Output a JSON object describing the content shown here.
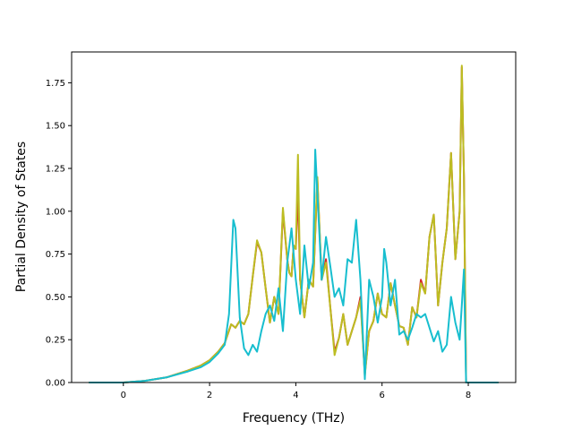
{
  "chart_data": {
    "type": "line",
    "title": "",
    "xlabel": "Frequency (THz)",
    "ylabel": "Partial Density of States",
    "xlim": [
      -1.2,
      9.1
    ],
    "ylim": [
      0,
      1.93
    ],
    "xticks": [
      0,
      2,
      4,
      6,
      8
    ],
    "yticks": [
      0.0,
      0.25,
      0.5,
      0.75,
      1.0,
      1.25,
      1.5,
      1.75
    ],
    "xtick_labels": [
      "0",
      "2",
      "4",
      "6",
      "8"
    ],
    "ytick_labels": [
      "0.00",
      "0.25",
      "0.50",
      "0.75",
      "1.00",
      "1.25",
      "1.50",
      "1.75"
    ],
    "grid": false,
    "legend": "none",
    "series": [
      {
        "color": "#d62728",
        "points": [
          [
            -0.8,
            0
          ],
          [
            0,
            0
          ],
          [
            0.5,
            0.01
          ],
          [
            1.0,
            0.03
          ],
          [
            1.5,
            0.07
          ],
          [
            1.8,
            0.1
          ],
          [
            2.0,
            0.13
          ],
          [
            2.2,
            0.18
          ],
          [
            2.35,
            0.23
          ],
          [
            2.5,
            0.34
          ],
          [
            2.6,
            0.32
          ],
          [
            2.7,
            0.36
          ],
          [
            2.8,
            0.34
          ],
          [
            2.9,
            0.4
          ],
          [
            3.0,
            0.62
          ],
          [
            3.1,
            0.82
          ],
          [
            3.2,
            0.76
          ],
          [
            3.3,
            0.55
          ],
          [
            3.4,
            0.35
          ],
          [
            3.5,
            0.5
          ],
          [
            3.6,
            0.4
          ],
          [
            3.7,
            1.0
          ],
          [
            3.8,
            0.72
          ],
          [
            3.85,
            0.64
          ],
          [
            3.9,
            0.62
          ],
          [
            3.95,
            0.8
          ],
          [
            4.0,
            0.78
          ],
          [
            4.05,
            1.12
          ],
          [
            4.1,
            0.6
          ],
          [
            4.2,
            0.38
          ],
          [
            4.3,
            0.6
          ],
          [
            4.4,
            0.56
          ],
          [
            4.5,
            1.18
          ],
          [
            4.6,
            0.6
          ],
          [
            4.7,
            0.72
          ],
          [
            4.8,
            0.44
          ],
          [
            4.9,
            0.18
          ],
          [
            5.0,
            0.26
          ],
          [
            5.1,
            0.4
          ],
          [
            5.2,
            0.22
          ],
          [
            5.3,
            0.3
          ],
          [
            5.4,
            0.38
          ],
          [
            5.5,
            0.5
          ],
          [
            5.6,
            0.05
          ],
          [
            5.7,
            0.3
          ],
          [
            5.8,
            0.36
          ],
          [
            5.9,
            0.52
          ],
          [
            6.0,
            0.4
          ],
          [
            6.1,
            0.38
          ],
          [
            6.2,
            0.58
          ],
          [
            6.3,
            0.45
          ],
          [
            6.4,
            0.33
          ],
          [
            6.5,
            0.32
          ],
          [
            6.6,
            0.22
          ],
          [
            6.7,
            0.44
          ],
          [
            6.8,
            0.38
          ],
          [
            6.9,
            0.6
          ],
          [
            7.0,
            0.52
          ],
          [
            7.1,
            0.85
          ],
          [
            7.2,
            0.98
          ],
          [
            7.3,
            0.45
          ],
          [
            7.4,
            0.7
          ],
          [
            7.5,
            0.9
          ],
          [
            7.6,
            1.34
          ],
          [
            7.7,
            0.72
          ],
          [
            7.8,
            1.0
          ],
          [
            7.85,
            1.84
          ],
          [
            7.9,
            1.2
          ],
          [
            7.95,
            0.0
          ],
          [
            8.7,
            0
          ]
        ]
      },
      {
        "color": "#bcbd22",
        "points": [
          [
            -0.8,
            0
          ],
          [
            0,
            0
          ],
          [
            0.5,
            0.01
          ],
          [
            1.0,
            0.03
          ],
          [
            1.5,
            0.07
          ],
          [
            1.8,
            0.1
          ],
          [
            2.0,
            0.13
          ],
          [
            2.2,
            0.18
          ],
          [
            2.35,
            0.23
          ],
          [
            2.5,
            0.34
          ],
          [
            2.6,
            0.32
          ],
          [
            2.7,
            0.36
          ],
          [
            2.8,
            0.34
          ],
          [
            2.9,
            0.4
          ],
          [
            3.0,
            0.62
          ],
          [
            3.1,
            0.83
          ],
          [
            3.2,
            0.76
          ],
          [
            3.3,
            0.55
          ],
          [
            3.4,
            0.35
          ],
          [
            3.5,
            0.5
          ],
          [
            3.6,
            0.4
          ],
          [
            3.7,
            1.02
          ],
          [
            3.8,
            0.72
          ],
          [
            3.85,
            0.64
          ],
          [
            3.9,
            0.62
          ],
          [
            3.95,
            0.8
          ],
          [
            4.0,
            0.78
          ],
          [
            4.05,
            1.33
          ],
          [
            4.1,
            0.6
          ],
          [
            4.2,
            0.38
          ],
          [
            4.3,
            0.6
          ],
          [
            4.4,
            0.56
          ],
          [
            4.5,
            1.2
          ],
          [
            4.6,
            0.6
          ],
          [
            4.7,
            0.7
          ],
          [
            4.8,
            0.44
          ],
          [
            4.9,
            0.16
          ],
          [
            5.0,
            0.26
          ],
          [
            5.1,
            0.4
          ],
          [
            5.2,
            0.22
          ],
          [
            5.3,
            0.3
          ],
          [
            5.4,
            0.38
          ],
          [
            5.5,
            0.48
          ],
          [
            5.6,
            0.04
          ],
          [
            5.7,
            0.3
          ],
          [
            5.8,
            0.36
          ],
          [
            5.9,
            0.52
          ],
          [
            6.0,
            0.4
          ],
          [
            6.1,
            0.38
          ],
          [
            6.2,
            0.58
          ],
          [
            6.3,
            0.45
          ],
          [
            6.4,
            0.33
          ],
          [
            6.5,
            0.32
          ],
          [
            6.6,
            0.22
          ],
          [
            6.7,
            0.44
          ],
          [
            6.8,
            0.38
          ],
          [
            6.9,
            0.58
          ],
          [
            7.0,
            0.52
          ],
          [
            7.1,
            0.85
          ],
          [
            7.2,
            0.98
          ],
          [
            7.3,
            0.45
          ],
          [
            7.4,
            0.7
          ],
          [
            7.5,
            0.9
          ],
          [
            7.6,
            1.34
          ],
          [
            7.7,
            0.72
          ],
          [
            7.8,
            1.0
          ],
          [
            7.85,
            1.85
          ],
          [
            7.9,
            1.2
          ],
          [
            7.95,
            0.0
          ],
          [
            8.7,
            0
          ]
        ]
      },
      {
        "color": "#17becf",
        "points": [
          [
            -0.8,
            0
          ],
          [
            0,
            0
          ],
          [
            0.5,
            0.01
          ],
          [
            1.0,
            0.03
          ],
          [
            1.5,
            0.065
          ],
          [
            1.8,
            0.09
          ],
          [
            2.0,
            0.12
          ],
          [
            2.2,
            0.17
          ],
          [
            2.35,
            0.22
          ],
          [
            2.45,
            0.4
          ],
          [
            2.55,
            0.95
          ],
          [
            2.6,
            0.9
          ],
          [
            2.7,
            0.38
          ],
          [
            2.8,
            0.2
          ],
          [
            2.9,
            0.16
          ],
          [
            3.0,
            0.22
          ],
          [
            3.1,
            0.18
          ],
          [
            3.2,
            0.3
          ],
          [
            3.3,
            0.4
          ],
          [
            3.4,
            0.45
          ],
          [
            3.5,
            0.36
          ],
          [
            3.6,
            0.55
          ],
          [
            3.7,
            0.3
          ],
          [
            3.8,
            0.7
          ],
          [
            3.9,
            0.9
          ],
          [
            4.0,
            0.6
          ],
          [
            4.1,
            0.4
          ],
          [
            4.2,
            0.8
          ],
          [
            4.3,
            0.55
          ],
          [
            4.4,
            0.7
          ],
          [
            4.45,
            1.36
          ],
          [
            4.5,
            1.1
          ],
          [
            4.6,
            0.6
          ],
          [
            4.7,
            0.85
          ],
          [
            4.8,
            0.68
          ],
          [
            4.9,
            0.5
          ],
          [
            5.0,
            0.55
          ],
          [
            5.1,
            0.45
          ],
          [
            5.2,
            0.72
          ],
          [
            5.3,
            0.7
          ],
          [
            5.4,
            0.95
          ],
          [
            5.5,
            0.6
          ],
          [
            5.6,
            0.02
          ],
          [
            5.7,
            0.6
          ],
          [
            5.8,
            0.5
          ],
          [
            5.9,
            0.35
          ],
          [
            6.0,
            0.5
          ],
          [
            6.05,
            0.78
          ],
          [
            6.1,
            0.7
          ],
          [
            6.2,
            0.45
          ],
          [
            6.3,
            0.6
          ],
          [
            6.4,
            0.28
          ],
          [
            6.5,
            0.3
          ],
          [
            6.6,
            0.25
          ],
          [
            6.7,
            0.32
          ],
          [
            6.8,
            0.4
          ],
          [
            6.9,
            0.38
          ],
          [
            7.0,
            0.4
          ],
          [
            7.1,
            0.32
          ],
          [
            7.2,
            0.24
          ],
          [
            7.3,
            0.3
          ],
          [
            7.4,
            0.18
          ],
          [
            7.5,
            0.22
          ],
          [
            7.6,
            0.5
          ],
          [
            7.7,
            0.35
          ],
          [
            7.8,
            0.25
          ],
          [
            7.85,
            0.45
          ],
          [
            7.9,
            0.66
          ],
          [
            7.95,
            0.0
          ],
          [
            8.7,
            0
          ]
        ]
      }
    ]
  }
}
